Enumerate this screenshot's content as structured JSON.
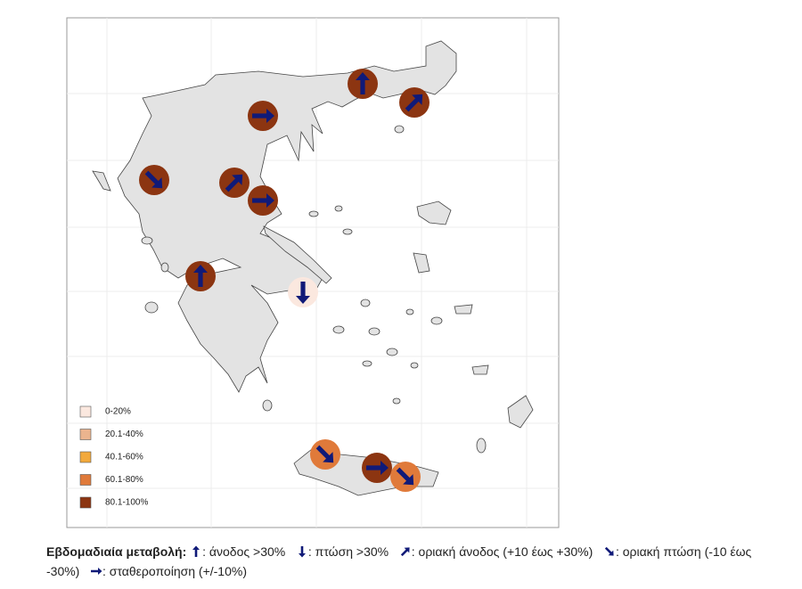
{
  "legend": {
    "items": [
      {
        "label": "0-20%",
        "color": "#fbe8df"
      },
      {
        "label": "20.1-40%",
        "color": "#ebb48e"
      },
      {
        "label": "40.1-60%",
        "color": "#f2a93b"
      },
      {
        "label": "60.1-80%",
        "color": "#e07a3a"
      },
      {
        "label": "80.1-100%",
        "color": "#8c3511"
      }
    ]
  },
  "caption": {
    "title": "Εβδομαδιαία μεταβολή:",
    "items": [
      ": άνοδος >30%",
      ": πτώση >30%",
      ": οριακή άνοδος (+10 έως +30%)",
      ": οριακή πτώση  (-10 έως -30%)",
      ":  σταθεροποίηση (+/-10%)"
    ]
  }
}
